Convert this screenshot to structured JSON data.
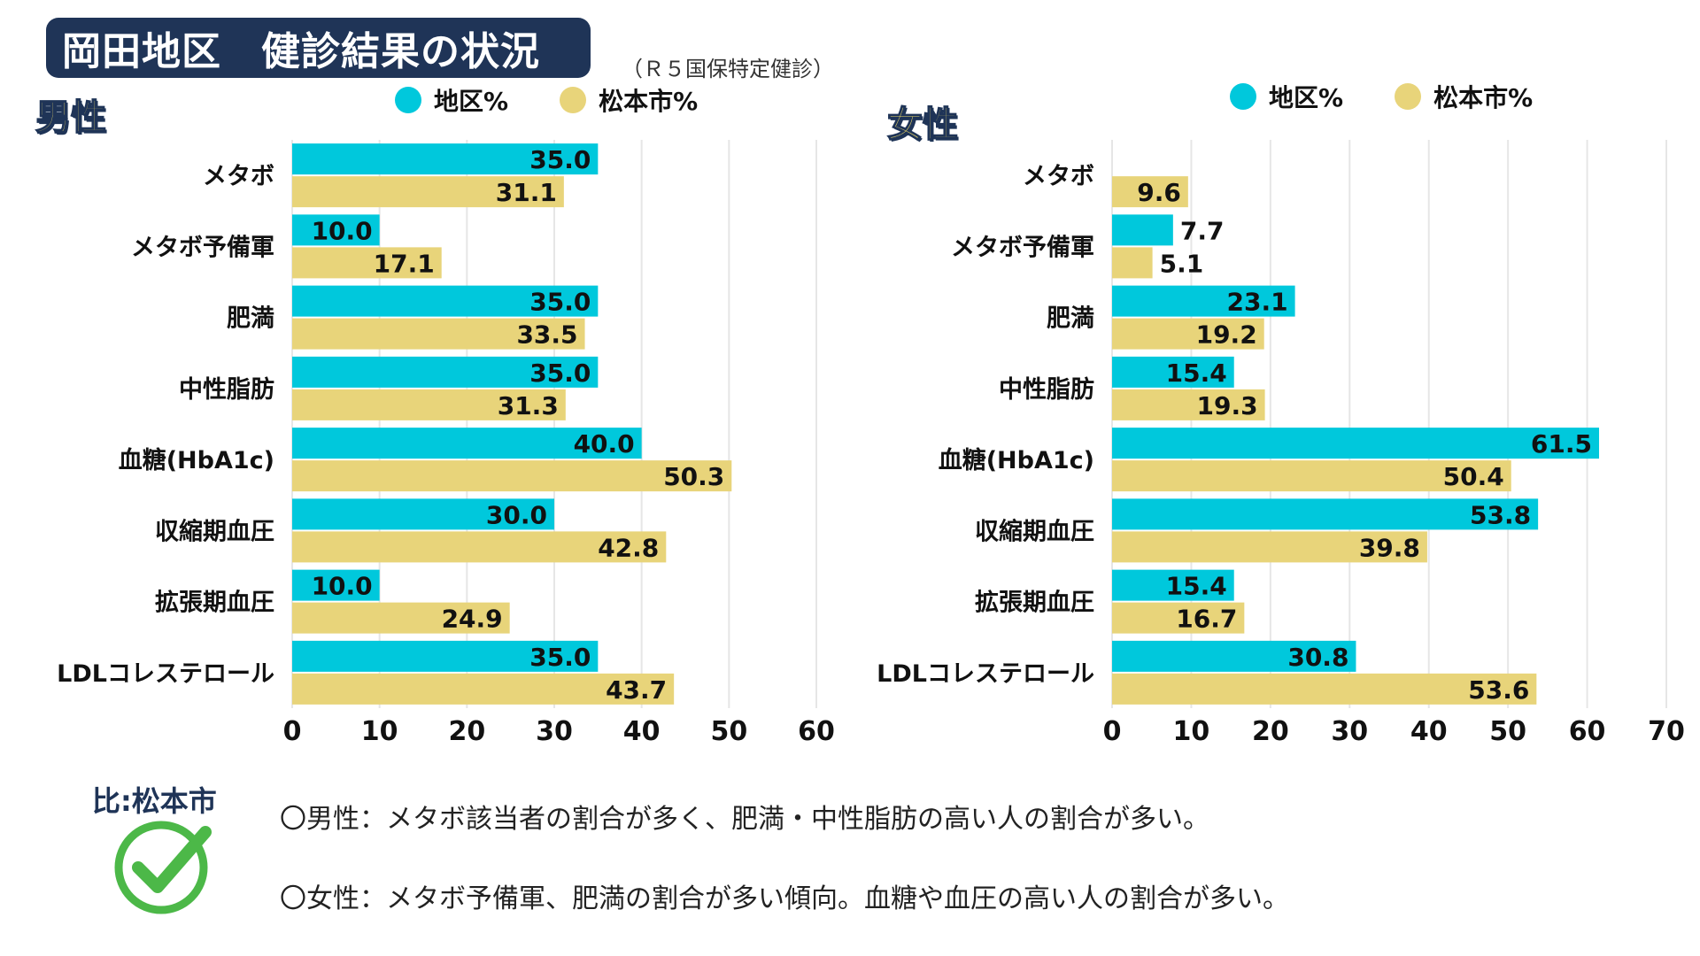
{
  "title": "岡田地区　健診結果の状況",
  "subtitle": "（Ｒ５国保特定健診）",
  "legend": {
    "district": "地区%",
    "city": "松本市%"
  },
  "colors": {
    "district": "#00c8dc",
    "city": "#e8d47a",
    "title_bg": "#1f3457",
    "check": "#4cb848",
    "grid": "#e6e6e6"
  },
  "comparison_label": "比:松本市",
  "notes": [
    "〇男性：メタボ該当者の割合が多く、肥満・中性脂肪の高い人の割合が多い。",
    "〇女性：メタボ予備軍、肥満の割合が多い傾向。血糖や血圧の高い人の割合が多い。"
  ],
  "chart_data": [
    {
      "type": "bar",
      "orientation": "horizontal",
      "title": "男性",
      "categories": [
        "メタボ",
        "メタボ予備軍",
        "肥満",
        "中性脂肪",
        "血糖(HbA1c)",
        "収縮期血圧",
        "拡張期血圧",
        "LDLコレステロール"
      ],
      "series": [
        {
          "name": "地区%",
          "values": [
            35.0,
            10.0,
            35.0,
            35.0,
            40.0,
            30.0,
            10.0,
            35.0
          ]
        },
        {
          "name": "松本市%",
          "values": [
            31.1,
            17.1,
            33.5,
            31.3,
            50.3,
            42.8,
            24.9,
            43.7
          ]
        }
      ],
      "xlim": [
        0,
        60
      ],
      "xticks": [
        0,
        10,
        20,
        30,
        40,
        50,
        60
      ]
    },
    {
      "type": "bar",
      "orientation": "horizontal",
      "title": "女性",
      "categories": [
        "メタボ",
        "メタボ予備軍",
        "肥満",
        "中性脂肪",
        "血糖(HbA1c)",
        "収縮期血圧",
        "拡張期血圧",
        "LDLコレステロール"
      ],
      "series": [
        {
          "name": "地区%",
          "values": [
            null,
            7.7,
            23.1,
            15.4,
            61.5,
            53.8,
            15.4,
            30.8
          ]
        },
        {
          "name": "松本市%",
          "values": [
            9.6,
            5.1,
            19.2,
            19.3,
            50.4,
            39.8,
            16.7,
            53.6
          ]
        }
      ],
      "xlim": [
        0,
        70
      ],
      "xticks": [
        0,
        10,
        20,
        30,
        40,
        50,
        60,
        70
      ]
    }
  ]
}
